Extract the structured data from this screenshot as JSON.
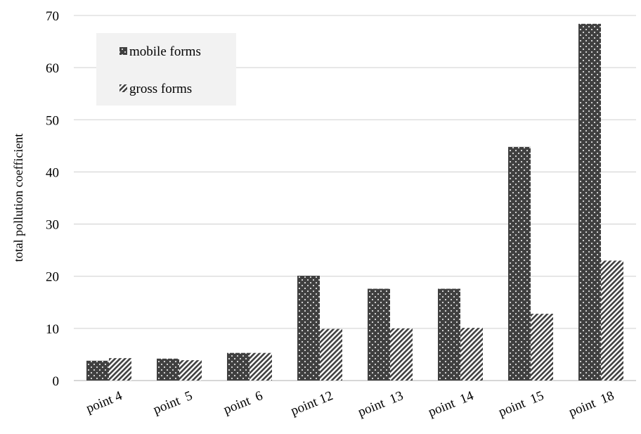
{
  "chart_data": {
    "type": "bar",
    "categories": [
      "point 4",
      "point  5",
      "point  6",
      "point 12",
      "point  13",
      "point  14",
      "point  15",
      "point  18"
    ],
    "series": [
      {
        "name": "mobile forms",
        "values": [
          3.8,
          4.2,
          5.3,
          20.1,
          17.6,
          17.6,
          44.8,
          68.4
        ],
        "pattern": "dots"
      },
      {
        "name": "gross forms",
        "values": [
          4.3,
          3.9,
          5.3,
          9.9,
          10.0,
          10.1,
          12.8,
          23.0
        ],
        "pattern": "stripes"
      }
    ],
    "title": "",
    "xlabel": "",
    "ylabel": "total pollution coefficient",
    "ylim": [
      0,
      70
    ],
    "yticks": [
      "0",
      "10",
      "20",
      "30",
      "40",
      "50",
      "60",
      "70"
    ],
    "grid": true,
    "legend_position": "top-left",
    "colors": {
      "bar": "#404040",
      "grid": "#d9d9d9",
      "legend_bg": "#f2f2f2"
    }
  }
}
